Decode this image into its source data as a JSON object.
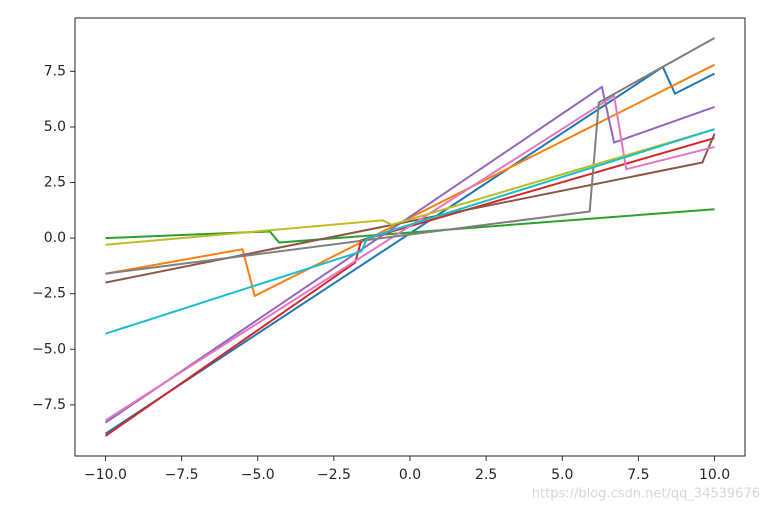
{
  "chart_data": {
    "type": "line",
    "xlim": [
      -11,
      11
    ],
    "ylim": [
      -9.8,
      9.9
    ],
    "xticks": [
      {
        "value": -10,
        "label": "−10.0"
      },
      {
        "value": -7.5,
        "label": "−7.5"
      },
      {
        "value": -5,
        "label": "−5.0"
      },
      {
        "value": -2.5,
        "label": "−2.5"
      },
      {
        "value": 0,
        "label": "0.0"
      },
      {
        "value": 2.5,
        "label": "2.5"
      },
      {
        "value": 5,
        "label": "5.0"
      },
      {
        "value": 7.5,
        "label": "7.5"
      },
      {
        "value": 10,
        "label": "10.0"
      }
    ],
    "yticks": [
      {
        "value": -7.5,
        "label": "−7.5"
      },
      {
        "value": -5,
        "label": "−5.0"
      },
      {
        "value": -2.5,
        "label": "−2.5"
      },
      {
        "value": 0,
        "label": "0.0"
      },
      {
        "value": 2.5,
        "label": "2.5"
      },
      {
        "value": 5,
        "label": "5.0"
      },
      {
        "value": 7.5,
        "label": "7.5"
      }
    ],
    "series": [
      {
        "color": "#1f77b4",
        "x": [
          -10,
          8.3,
          8.7,
          10
        ],
        "values": [
          -8.8,
          7.7,
          6.5,
          7.4
        ]
      },
      {
        "color": "#ff7f0e",
        "x": [
          -10,
          -5.5,
          -5.1,
          10
        ],
        "values": [
          -1.6,
          -0.5,
          -2.6,
          7.8
        ]
      },
      {
        "color": "#2ca02c",
        "x": [
          -10,
          -4.6,
          -4.3,
          10
        ],
        "values": [
          0.0,
          0.3,
          -0.2,
          1.3
        ]
      },
      {
        "color": "#d62728",
        "x": [
          -10,
          -1.8,
          -1.6,
          10
        ],
        "values": [
          -8.9,
          -1.1,
          -0.1,
          4.5
        ]
      },
      {
        "color": "#9467bd",
        "x": [
          -10,
          6.3,
          6.7,
          10
        ],
        "values": [
          -8.3,
          6.8,
          4.3,
          5.9
        ]
      },
      {
        "color": "#8c564b",
        "x": [
          -10,
          9.6,
          10
        ],
        "values": [
          -2.0,
          3.4,
          4.7
        ]
      },
      {
        "color": "#e377c2",
        "x": [
          -10,
          6.7,
          7.1,
          10
        ],
        "values": [
          -8.2,
          6.4,
          3.1,
          4.1
        ]
      },
      {
        "color": "#7f7f7f",
        "x": [
          -10,
          5.9,
          6.2,
          10
        ],
        "values": [
          -1.6,
          1.2,
          6.1,
          9.0
        ]
      },
      {
        "color": "#bcbd22",
        "x": [
          -10,
          -0.9,
          -0.6,
          10
        ],
        "values": [
          -0.3,
          0.8,
          0.6,
          4.9
        ]
      },
      {
        "color": "#17becf",
        "x": [
          -10,
          -1.6,
          -1.4,
          10
        ],
        "values": [
          -4.3,
          -0.6,
          0.0,
          4.9
        ]
      }
    ]
  },
  "watermark": "https://blog.csdn.net/qq_34539676"
}
